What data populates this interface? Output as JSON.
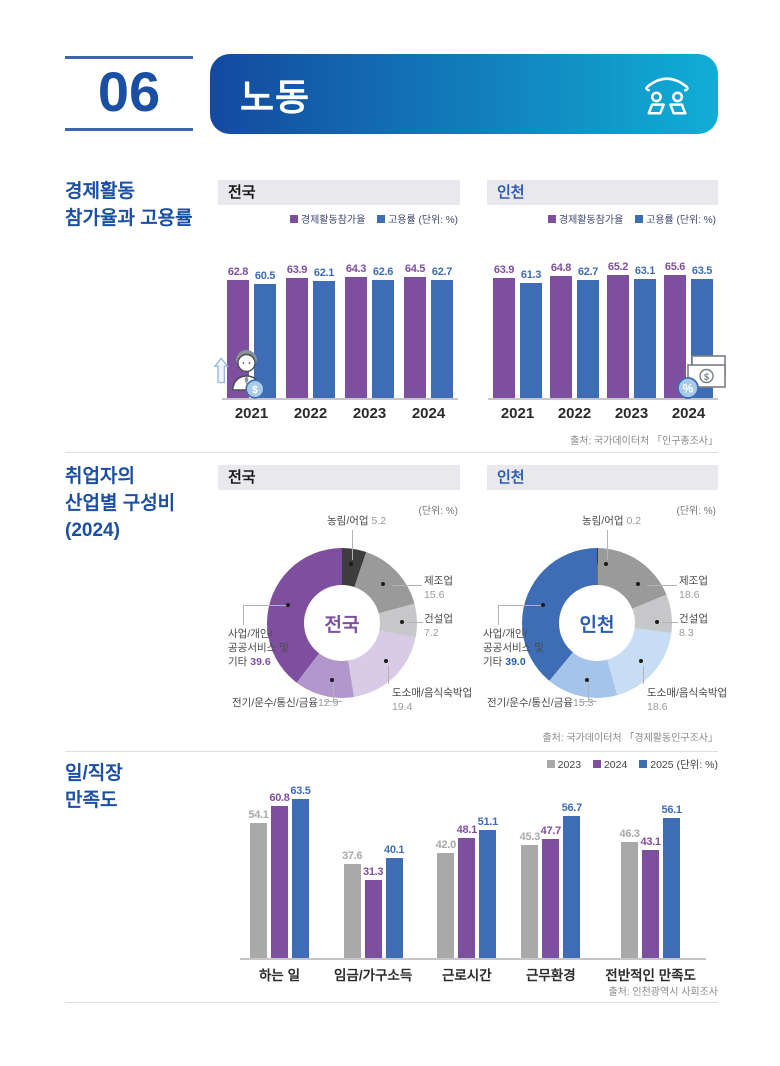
{
  "page": {
    "number": "06",
    "title": "노동"
  },
  "colors": {
    "title_blue": "#1b4fa3",
    "banner_start": "#14499f",
    "banner_end": "#10aed6",
    "incheon_blue": "#2b5cb0",
    "panel_bg": "#e9e9ed",
    "purple": "#7e4f9e",
    "blue": "#3f6db5",
    "gray": "#a9a9a9",
    "dark": "#3d3d3d",
    "mid_gray": "#9a9a9a",
    "light_gray": "#c7c7c9",
    "pale_purple": "#d9cbe6",
    "mid_purple": "#b297cc",
    "pale_blue": "#c7ddf4",
    "mid_blue": "#a5c4e9"
  },
  "icons": {
    "banner": "meeting-icon",
    "chart_left": "worker-salary-icon",
    "chart_right": "money-percent-icon"
  },
  "section1": {
    "title_lines": [
      "경제활동",
      "참가율과 고용률"
    ],
    "legend": {
      "s1": "경제활동참가율",
      "s2": "고용률",
      "unit": "(단위: %)"
    },
    "source": "출처: 국가데이터처 「인구총조사」"
  },
  "section2": {
    "title_lines": [
      "취업자의",
      "산업별 구성비",
      "(2024)"
    ],
    "unit": "(단위: %)",
    "biz_lines": [
      "사업/개인/",
      "공공서비스 및",
      "기타"
    ],
    "source": "출처: 국가데이터처 「경제활동인구조사」"
  },
  "section3": {
    "title_lines": [
      "일/직장",
      "만족도"
    ],
    "legend": {
      "unit": "(단위: %)"
    },
    "source": "출처: 인천광역시 사회조사"
  },
  "chart_data": [
    {
      "id": "economic_activity_national",
      "type": "bar",
      "title": "전국",
      "ylabel": "%",
      "ylim": [
        0,
        70
      ],
      "categories": [
        "2021",
        "2022",
        "2023",
        "2024"
      ],
      "series": [
        {
          "name": "경제활동참가율",
          "color": "purple",
          "values": [
            62.8,
            63.9,
            64.3,
            64.5
          ]
        },
        {
          "name": "고용률",
          "color": "blue",
          "values": [
            60.5,
            62.1,
            62.6,
            62.7
          ]
        }
      ]
    },
    {
      "id": "economic_activity_incheon",
      "type": "bar",
      "title": "인천",
      "ylabel": "%",
      "ylim": [
        0,
        70
      ],
      "categories": [
        "2021",
        "2022",
        "2023",
        "2024"
      ],
      "series": [
        {
          "name": "경제활동참가율",
          "color": "purple",
          "values": [
            63.9,
            64.8,
            65.2,
            65.6
          ]
        },
        {
          "name": "고용률",
          "color": "blue",
          "values": [
            61.3,
            62.7,
            63.1,
            63.5
          ]
        }
      ]
    },
    {
      "id": "industry_composition_national",
      "type": "pie",
      "title": "전국",
      "center_label": "전국",
      "slices": [
        {
          "name": "농림/어업",
          "value": 5.2,
          "color": "dark"
        },
        {
          "name": "제조업",
          "value": 15.6,
          "color": "mid_gray"
        },
        {
          "name": "건설업",
          "value": 7.2,
          "color": "light_gray"
        },
        {
          "name": "도소매/음식숙박업",
          "value": 19.4,
          "color": "pale_purple"
        },
        {
          "name": "전기/운수/통신/금융",
          "value": 12.9,
          "color": "mid_purple"
        },
        {
          "name": "사업/개인/공공서비스 및 기타",
          "value": 39.6,
          "color": "purple"
        }
      ]
    },
    {
      "id": "industry_composition_incheon",
      "type": "pie",
      "title": "인천",
      "center_label": "인천",
      "slices": [
        {
          "name": "농림/어업",
          "value": 0.2,
          "color": "dark"
        },
        {
          "name": "제조업",
          "value": 18.6,
          "color": "mid_gray"
        },
        {
          "name": "건설업",
          "value": 8.3,
          "color": "light_gray"
        },
        {
          "name": "도소매/음식숙박업",
          "value": 18.6,
          "color": "pale_blue"
        },
        {
          "name": "전기/운수/통신/금융",
          "value": 15.3,
          "color": "mid_blue"
        },
        {
          "name": "사업/개인/공공서비스 및 기타",
          "value": 39.0,
          "color": "blue"
        }
      ]
    },
    {
      "id": "job_satisfaction",
      "type": "bar",
      "title": "일/직장 만족도",
      "ylabel": "%",
      "ylim": [
        0,
        70
      ],
      "categories": [
        "하는 일",
        "임금/가구소득",
        "근로시간",
        "근무환경",
        "전반적인 만족도"
      ],
      "series": [
        {
          "name": "2023",
          "color": "gray",
          "values": [
            54.1,
            37.6,
            42.0,
            45.3,
            46.3
          ]
        },
        {
          "name": "2024",
          "color": "purple",
          "values": [
            60.8,
            31.3,
            48.1,
            47.7,
            43.1
          ]
        },
        {
          "name": "2025",
          "color": "blue",
          "values": [
            63.5,
            40.1,
            51.1,
            56.7,
            56.1
          ]
        }
      ]
    }
  ]
}
